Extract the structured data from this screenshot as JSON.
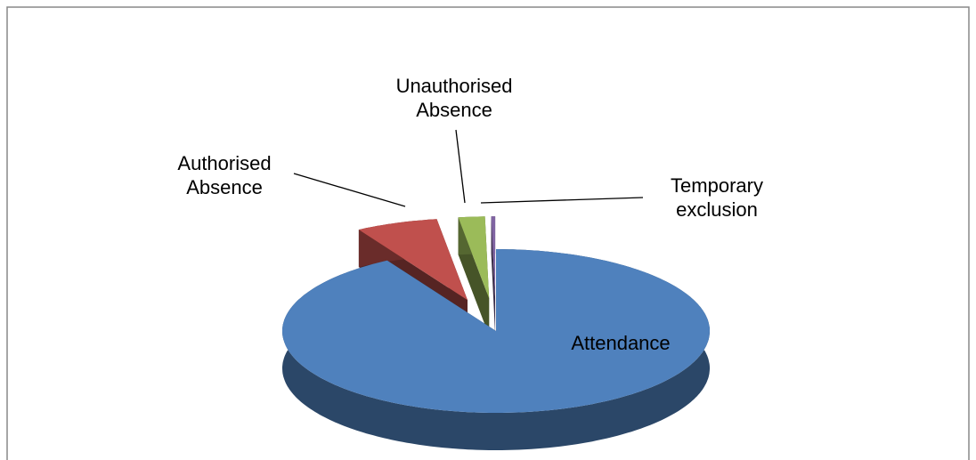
{
  "chart_data": {
    "type": "pie",
    "categories": [
      "Attendance",
      "Authorised Absence",
      "Unauthorised Absence",
      "Temporary exclusion"
    ],
    "values": [
      91.5,
      6.2,
      2.0,
      0.3
    ],
    "colors": [
      "#4f81bd",
      "#c0504d",
      "#9bbb59",
      "#8064a2"
    ]
  }
}
